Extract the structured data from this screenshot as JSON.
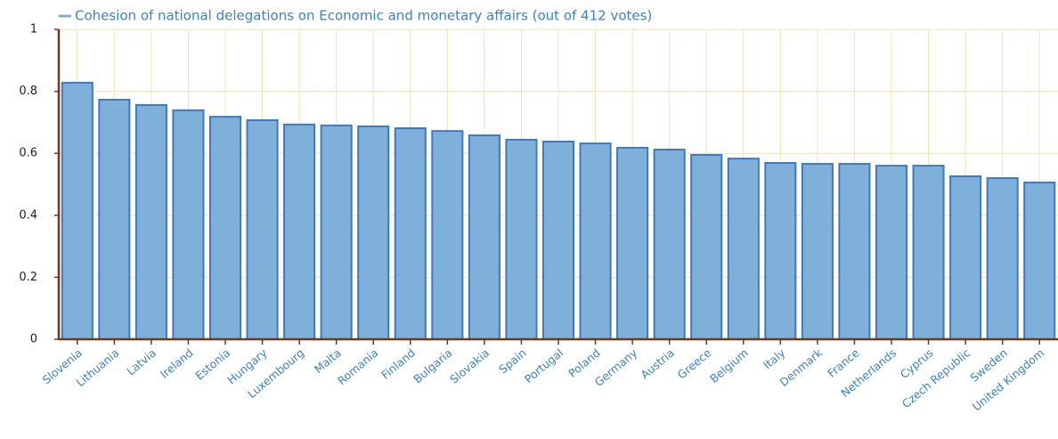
{
  "chart_data": {
    "type": "bar",
    "categories": [
      "Slovenia",
      "Lithuania",
      "Latvia",
      "Ireland",
      "Estonia",
      "Hungary",
      "Luxembourg",
      "Malta",
      "Romania",
      "Finland",
      "Bulgaria",
      "Slovakia",
      "Spain",
      "Portugal",
      "Poland",
      "Germany",
      "Austria",
      "Greece",
      "Belgium",
      "Italy",
      "Denmark",
      "France",
      "Netherlands",
      "Cyprus",
      "Czech Republic",
      "Sweden",
      "United Kingdom"
    ],
    "series": [
      {
        "name": "Cohesion of national delegations on Economic and monetary affairs (out of 412 votes)",
        "color": "#7fb0da",
        "values": [
          0.828,
          0.773,
          0.756,
          0.739,
          0.718,
          0.707,
          0.693,
          0.69,
          0.687,
          0.681,
          0.672,
          0.658,
          0.644,
          0.638,
          0.632,
          0.618,
          0.612,
          0.595,
          0.583,
          0.569,
          0.566,
          0.566,
          0.56,
          0.56,
          0.526,
          0.52,
          0.506
        ]
      }
    ],
    "ylim": [
      0,
      1
    ],
    "yticks": [
      0,
      0.2,
      0.4,
      0.6,
      0.8,
      1
    ],
    "grid": true
  }
}
